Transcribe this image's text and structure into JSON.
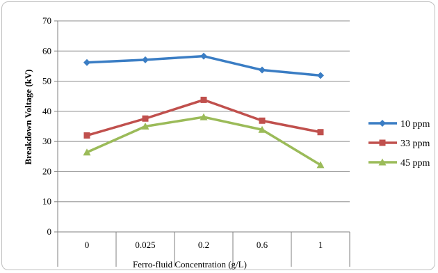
{
  "chart_data": {
    "type": "line",
    "xlabel": "Ferro-fluid Concentration (g/L)",
    "ylabel": "Breakdown Voltage (kV)",
    "categories": [
      "0",
      "0.025",
      "0.2",
      "0.6",
      "1"
    ],
    "ylim": [
      0,
      70
    ],
    "yticks": [
      "0",
      "10",
      "20",
      "30",
      "40",
      "50",
      "60",
      "70"
    ],
    "grid": true,
    "legend_position": "right",
    "series": [
      {
        "name": "10 ppm",
        "color": "#3a7dc4",
        "marker": "diamond",
        "values": [
          56.2,
          57.1,
          58.3,
          53.7,
          51.9
        ]
      },
      {
        "name": "33 ppm",
        "color": "#c0504d",
        "marker": "square",
        "values": [
          32.0,
          37.6,
          43.8,
          36.9,
          33.1
        ]
      },
      {
        "name": "45 ppm",
        "color": "#9bbb59",
        "marker": "triangle",
        "values": [
          26.4,
          35.0,
          38.1,
          33.9,
          22.2
        ]
      }
    ]
  }
}
